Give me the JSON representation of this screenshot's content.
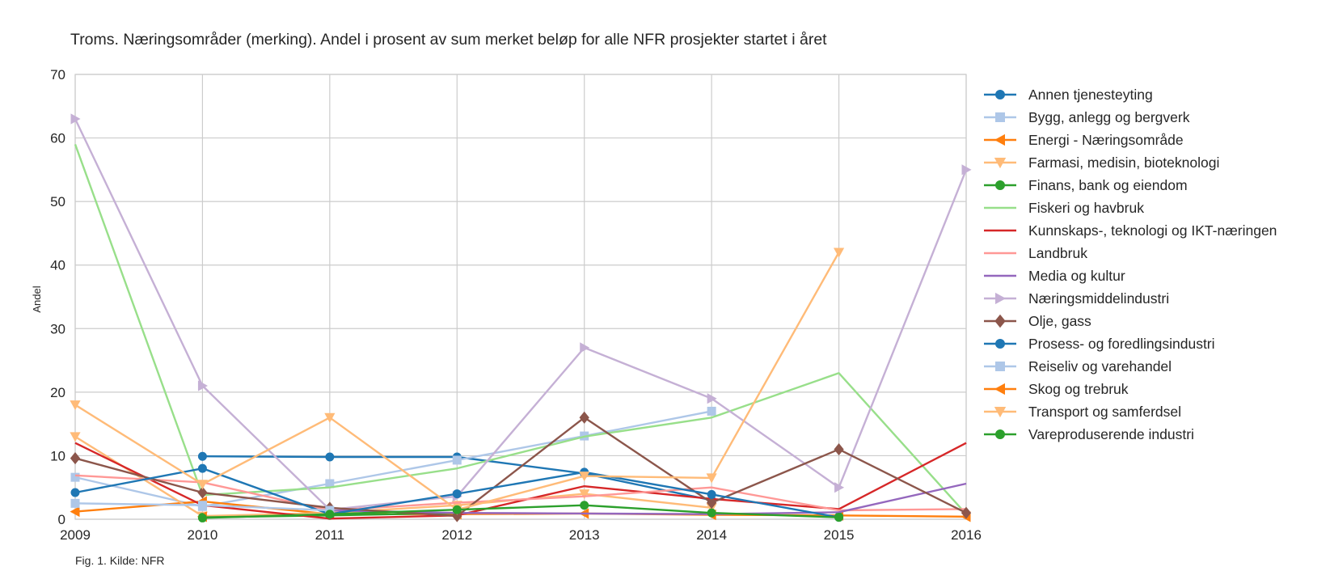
{
  "chart_data": {
    "type": "line",
    "title": "Troms. Næringsområder (merking). Andel i prosent av sum merket beløp for alle NFR prosjekter startet i året",
    "xlabel": "",
    "ylabel": "Andel",
    "source_note": "Fig. 1. Kilde: NFR",
    "x": [
      2009,
      2010,
      2011,
      2012,
      2013,
      2014,
      2015,
      2016
    ],
    "xlim": [
      2009,
      2016
    ],
    "ylim": [
      0,
      70
    ],
    "yticks": [
      0,
      10,
      20,
      30,
      40,
      50,
      60,
      70
    ],
    "grid": true,
    "legend_position": "right",
    "series": [
      {
        "name": "Annen tjenesteyting",
        "color": "#1f77b4",
        "marker": "circle",
        "values": [
          null,
          9.9,
          9.8,
          9.8,
          7.2,
          3.0,
          null,
          null
        ]
      },
      {
        "name": "Bygg, anlegg og bergverk",
        "color": "#aec7e8",
        "marker": "square",
        "values": [
          6.6,
          2.0,
          5.6,
          9.3,
          13.1,
          17.0,
          null,
          null
        ]
      },
      {
        "name": "Energi - Næringsområde",
        "color": "#ff7f0e",
        "marker": "triangle-left",
        "values": [
          1.2,
          2.8,
          0.8,
          0.8,
          0.9,
          0.7,
          0.6,
          0.4
        ]
      },
      {
        "name": "Farmasi, medisin, bioteknologi",
        "color": "#ffbb78",
        "marker": "triangle-down",
        "values": [
          13.0,
          0.5,
          1.0,
          2.2,
          4.0,
          1.8,
          null,
          null
        ]
      },
      {
        "name": "Finans, bank og eiendom",
        "color": "#2ca02c",
        "marker": "circle",
        "values": [
          null,
          0.3,
          0.6,
          1.0,
          null,
          null,
          0.4,
          null
        ]
      },
      {
        "name": "Fiskeri og havbruk",
        "color": "#98df8a",
        "marker": "none",
        "values": [
          59.0,
          3.8,
          5.0,
          8.0,
          13.0,
          16.0,
          23.0,
          0.8
        ]
      },
      {
        "name": "Kunnskaps-, teknologi og IKT-næringen",
        "color": "#d62728",
        "marker": "none",
        "values": [
          12.0,
          2.2,
          0.1,
          0.6,
          5.2,
          3.2,
          1.6,
          12.0
        ]
      },
      {
        "name": "Landbruk",
        "color": "#ff9896",
        "marker": "none",
        "values": [
          6.9,
          5.8,
          1.4,
          2.6,
          3.6,
          5.0,
          1.4,
          1.6
        ]
      },
      {
        "name": "Media og kultur",
        "color": "#9467bd",
        "marker": "none",
        "values": [
          null,
          null,
          1.4,
          1.0,
          0.9,
          0.8,
          1.1,
          5.6
        ]
      },
      {
        "name": "Næringsmiddelindustri",
        "color": "#c5b0d5",
        "marker": "triangle-right",
        "values": [
          63.0,
          21.0,
          1.5,
          3.6,
          27.0,
          19.0,
          5.0,
          55.0
        ]
      },
      {
        "name": "Olje, gass",
        "color": "#8c564b",
        "marker": "diamond",
        "values": [
          9.6,
          4.2,
          1.8,
          0.5,
          16.0,
          2.6,
          11.0,
          1.0
        ]
      },
      {
        "name": "Prosess- og foredlingsindustri",
        "color": "#1f77b4",
        "marker": "circle",
        "values": [
          4.2,
          8.0,
          0.8,
          4.0,
          7.4,
          3.9,
          0.3,
          null
        ]
      },
      {
        "name": "Reiseliv og varehandel",
        "color": "#aec7e8",
        "marker": "square",
        "values": [
          2.5,
          2.2,
          1.4,
          null,
          null,
          null,
          null,
          null
        ]
      },
      {
        "name": "Skog og trebruk",
        "color": "#ff7f0e",
        "marker": "triangle-left",
        "values": [
          null,
          0.4,
          null,
          null,
          null,
          null,
          null,
          null
        ]
      },
      {
        "name": "Transport og samferdsel",
        "color": "#ffbb78",
        "marker": "triangle-down",
        "values": [
          18.0,
          5.5,
          16.0,
          1.5,
          6.8,
          6.5,
          42.0,
          null
        ]
      },
      {
        "name": "Vareproduserende industri",
        "color": "#2ca02c",
        "marker": "circle",
        "values": [
          null,
          0.2,
          0.8,
          1.5,
          2.2,
          1.0,
          0.3,
          null
        ]
      }
    ]
  }
}
